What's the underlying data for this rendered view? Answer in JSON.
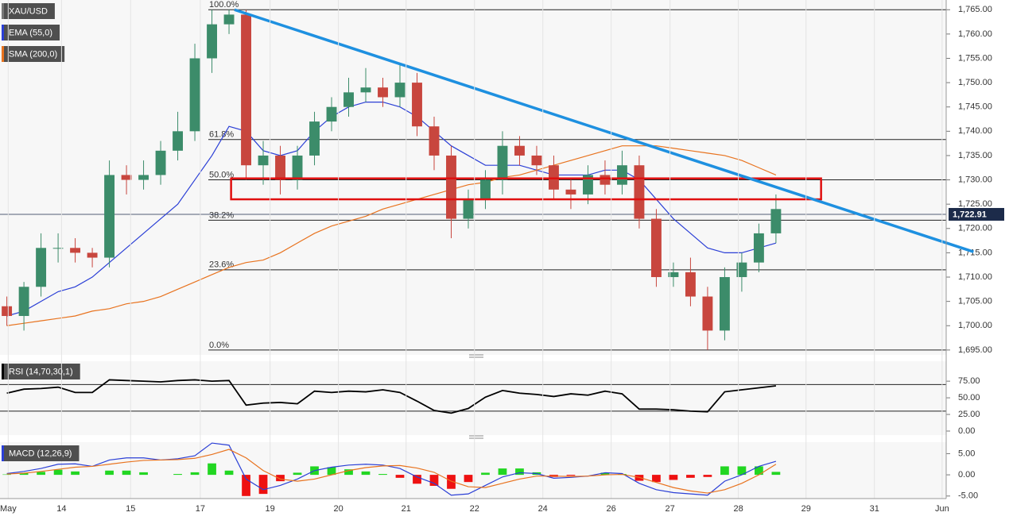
{
  "chart_data": [
    {
      "type": "candlestick",
      "name": "XAU/USD",
      "color_up": "#3c8c6a",
      "color_down": "#c8463e",
      "x": [
        0.1,
        0.35,
        0.6,
        0.85,
        1.1,
        1.35,
        1.6,
        1.85,
        2.1,
        2.35,
        2.6,
        2.85,
        3.1,
        3.35,
        3.6,
        3.85,
        4.1,
        4.35,
        4.6,
        4.85,
        5.1,
        5.35,
        5.6,
        5.85,
        6.1,
        6.35,
        6.6,
        6.85,
        7.1,
        7.35,
        7.6,
        7.85,
        8.1,
        8.35,
        8.6,
        8.85,
        9.1,
        9.35,
        9.6,
        9.85,
        10.1,
        10.35,
        10.6,
        10.85,
        11.1,
        11.35
      ],
      "open": [
        1704,
        1702,
        1708,
        1716,
        1716,
        1715,
        1714,
        1731,
        1730,
        1731,
        1736,
        1740,
        1755,
        1762,
        1764,
        1733,
        1735,
        1730,
        1735,
        1742,
        1745,
        1748,
        1749,
        1747,
        1750,
        1741,
        1735,
        1722,
        1726,
        1730,
        1737,
        1735,
        1733,
        1728,
        1727,
        1731,
        1729,
        1733,
        1722,
        1710,
        1711,
        1706,
        1699,
        1710,
        1713,
        1719
      ],
      "high": [
        1706,
        1709,
        1719,
        1719,
        1718,
        1716,
        1734,
        1733,
        1734,
        1738,
        1744,
        1758,
        1765,
        1765,
        1765,
        1738,
        1737,
        1737,
        1744,
        1747,
        1751,
        1753,
        1751,
        1754,
        1752,
        1743,
        1737,
        1728,
        1732,
        1740,
        1739,
        1737,
        1735,
        1730,
        1733,
        1734,
        1736,
        1735,
        1724,
        1713,
        1714,
        1708,
        1712,
        1715,
        1721,
        1727
      ],
      "low": [
        1700,
        1699,
        1706,
        1713,
        1713,
        1712,
        1712,
        1727,
        1728,
        1729,
        1734,
        1738,
        1752,
        1760,
        1730,
        1729,
        1727,
        1728,
        1733,
        1740,
        1743,
        1746,
        1745,
        1745,
        1739,
        1732,
        1718,
        1720,
        1724,
        1727,
        1733,
        1731,
        1726,
        1724,
        1725,
        1727,
        1727,
        1720,
        1708,
        1708,
        1704,
        1695,
        1697,
        1707,
        1711,
        1717
      ],
      "close": [
        1702,
        1708,
        1716,
        1716,
        1715,
        1714,
        1731,
        1730,
        1731,
        1736,
        1740,
        1755,
        1762,
        1764,
        1733,
        1735,
        1730,
        1735,
        1742,
        1745,
        1748,
        1749,
        1747,
        1750,
        1741,
        1735,
        1722,
        1726,
        1730,
        1737,
        1735,
        1733,
        1728,
        1727,
        1731,
        1729,
        1733,
        1722,
        1710,
        1711,
        1706,
        1699,
        1710,
        1713,
        1719,
        1724
      ],
      "series": [
        {
          "name": "EMA (55,0)",
          "color": "#2b3fd6",
          "values": [
            1702,
            1703,
            1705,
            1707,
            1708,
            1710,
            1713,
            1716,
            1719,
            1722,
            1725,
            1730,
            1735,
            1741,
            1740,
            1736,
            1735,
            1736,
            1740,
            1743,
            1745,
            1746,
            1746,
            1745,
            1743,
            1740,
            1737,
            1735,
            1733,
            1733,
            1733,
            1732,
            1731,
            1731,
            1731,
            1732,
            1732,
            1730,
            1726,
            1722,
            1719,
            1716,
            1715,
            1715,
            1716,
            1717
          ]
        },
        {
          "name": "SMA (200,0)",
          "color": "#e8731f",
          "values": [
            1700,
            1700.5,
            1701,
            1701.5,
            1702,
            1703,
            1703.5,
            1704.5,
            1705,
            1706,
            1707.5,
            1709,
            1710.5,
            1712,
            1713,
            1713.5,
            1715,
            1717,
            1719,
            1720.5,
            1721.5,
            1722.5,
            1724,
            1725,
            1726,
            1727,
            1728,
            1729,
            1729.5,
            1730.5,
            1731,
            1732,
            1733,
            1734,
            1735,
            1736,
            1737,
            1737,
            1737,
            1736.5,
            1736,
            1735.5,
            1735,
            1734,
            1732.5,
            1731
          ]
        }
      ],
      "xlim": [
        0,
        13.84
      ],
      "ylim": [
        1694,
        1767
      ],
      "yticks": [
        {
          "value": 1695,
          "label": "1,695.00"
        },
        {
          "value": 1700,
          "label": "1,700.00"
        },
        {
          "value": 1705,
          "label": "1,705.00"
        },
        {
          "value": 1710,
          "label": "1,710.00"
        },
        {
          "value": 1715,
          "label": "1,715.00"
        },
        {
          "value": 1720,
          "label": "1,720.00"
        },
        {
          "value": 1725,
          "label": "1,725.00"
        },
        {
          "value": 1730,
          "label": "1,730.00"
        },
        {
          "value": 1735,
          "label": "1,735.00"
        },
        {
          "value": 1740,
          "label": "1,740.00"
        },
        {
          "value": 1745,
          "label": "1,745.00"
        },
        {
          "value": 1750,
          "label": "1,750.00"
        },
        {
          "value": 1755,
          "label": "1,755.00"
        },
        {
          "value": 1760,
          "label": "1,760.00"
        },
        {
          "value": 1765,
          "label": "1,765.00"
        }
      ],
      "fib_levels": [
        {
          "value": 1765,
          "label": "100.0%"
        },
        {
          "value": 1738.3,
          "label": "61.8%"
        },
        {
          "value": 1730,
          "label": "50.0%"
        },
        {
          "value": 1721.7,
          "label": "38.2%"
        },
        {
          "value": 1711.5,
          "label": "23.6%"
        },
        {
          "value": 1695,
          "label": "0.0%"
        }
      ],
      "trendline": {
        "x": [
          3.43,
          14.24
        ],
        "y": [
          1765,
          1715.2
        ],
        "color": "#1e90e0"
      },
      "zone": {
        "x": [
          3.38,
          12.01
        ],
        "y": [
          1726,
          1730.3
        ],
        "color": "#e01010"
      },
      "last": {
        "value": 1722.91,
        "label": "1,722.91"
      }
    },
    {
      "type": "line",
      "title": "RSI (14,70,30,1)",
      "x": [
        0.1,
        0.35,
        0.6,
        0.85,
        1.1,
        1.35,
        1.6,
        1.85,
        2.1,
        2.35,
        2.6,
        2.85,
        3.1,
        3.35,
        3.6,
        3.85,
        4.1,
        4.35,
        4.6,
        4.85,
        5.1,
        5.35,
        5.6,
        5.85,
        6.1,
        6.35,
        6.6,
        6.85,
        7.1,
        7.35,
        7.6,
        7.85,
        8.1,
        8.35,
        8.6,
        8.85,
        9.1,
        9.35,
        9.6,
        9.85,
        10.1,
        10.35,
        10.6,
        10.85,
        11.1,
        11.35
      ],
      "series": [
        {
          "color": "#000000",
          "values": [
            57,
            63,
            64,
            66,
            58,
            58,
            77,
            76,
            75,
            74,
            76,
            77,
            75,
            76,
            39,
            42,
            43,
            41,
            60,
            58,
            60,
            59,
            62,
            58,
            45,
            31,
            27,
            34,
            51,
            61,
            57,
            55,
            52,
            56,
            54,
            60,
            56,
            33,
            33,
            32,
            30,
            29,
            59,
            62,
            65,
            68
          ]
        }
      ],
      "levels": [
        70,
        30
      ],
      "xlim": [
        0,
        13.84
      ],
      "ylim": [
        -6,
        105
      ],
      "yticks": [
        {
          "value": 0,
          "label": "0.00"
        },
        {
          "value": 25,
          "label": "25.00"
        },
        {
          "value": 50,
          "label": "50.00"
        },
        {
          "value": 75,
          "label": "75.00"
        }
      ]
    },
    {
      "type": "macd",
      "title": "MACD (12,26,9)",
      "x": [
        0.1,
        0.35,
        0.6,
        0.85,
        1.1,
        1.35,
        1.6,
        1.85,
        2.1,
        2.35,
        2.6,
        2.85,
        3.1,
        3.35,
        3.6,
        3.85,
        4.1,
        4.35,
        4.6,
        4.85,
        5.1,
        5.35,
        5.6,
        5.85,
        6.1,
        6.35,
        6.6,
        6.85,
        7.1,
        7.35,
        7.6,
        7.85,
        8.1,
        8.35,
        8.6,
        8.85,
        9.1,
        9.35,
        9.6,
        9.85,
        10.1,
        10.35,
        10.6,
        10.85,
        11.1,
        11.35
      ],
      "series": [
        {
          "color": "#2b3fd6",
          "values": [
            0.3,
            0.8,
            1.5,
            2.5,
            2.6,
            2.0,
            3.5,
            4.0,
            4.0,
            3.5,
            3.8,
            4.5,
            7.5,
            7.0,
            -1.0,
            -3.5,
            -2.5,
            -1.0,
            1.0,
            1.8,
            2.3,
            2.5,
            2.3,
            1.5,
            -0.5,
            -2.0,
            -4.8,
            -4.5,
            -2.5,
            -0.5,
            0.5,
            0.3,
            -0.8,
            -0.6,
            -0.3,
            0.5,
            0.3,
            -2.0,
            -3.5,
            -4.2,
            -4.5,
            -4.8,
            -1.5,
            0.0,
            2.0,
            3.2
          ]
        },
        {
          "color": "#e8731f",
          "values": [
            0.2,
            0.4,
            0.8,
            1.3,
            1.8,
            2.0,
            2.5,
            3.0,
            3.4,
            3.5,
            3.6,
            3.9,
            4.8,
            6.0,
            4.0,
            1.0,
            -1.0,
            -1.5,
            -1.0,
            0.0,
            1.0,
            1.7,
            2.1,
            2.2,
            1.6,
            0.6,
            -1.5,
            -2.8,
            -3.0,
            -2.0,
            -1.0,
            -0.3,
            -0.3,
            -0.4,
            -0.3,
            0.0,
            0.1,
            -0.6,
            -1.8,
            -3.0,
            -3.8,
            -4.3,
            -3.5,
            -2.0,
            0.0,
            2.5
          ]
        }
      ],
      "histogram": {
        "color_up": "#22d622",
        "color_down": "#ee1111",
        "values": [
          0.1,
          0.4,
          0.7,
          1.2,
          0.8,
          0.0,
          1.0,
          1.0,
          0.6,
          0.0,
          0.2,
          0.6,
          2.7,
          1.0,
          -5.0,
          -4.5,
          -1.5,
          0.5,
          2.0,
          1.8,
          1.3,
          0.8,
          0.2,
          -0.7,
          -2.1,
          -2.6,
          -3.3,
          -1.7,
          0.5,
          1.5,
          1.5,
          0.6,
          -0.5,
          -0.2,
          0.0,
          0.5,
          0.2,
          -1.4,
          -1.7,
          -1.2,
          -0.7,
          -0.5,
          2.0,
          2.0,
          2.0,
          0.7
        ]
      },
      "xlim": [
        0,
        13.84
      ],
      "ylim": [
        -5.6,
        7.7
      ],
      "yticks": [
        {
          "value": -5,
          "label": "-5.00"
        },
        {
          "value": 0,
          "label": "0.00"
        },
        {
          "value": 5,
          "label": "5.00"
        }
      ],
      "xticks": [
        {
          "value": 0.12,
          "label": "May"
        },
        {
          "value": 0.9,
          "label": "14"
        },
        {
          "value": 1.91,
          "label": "15"
        },
        {
          "value": 2.93,
          "label": "17"
        },
        {
          "value": 3.95,
          "label": "19"
        },
        {
          "value": 4.95,
          "label": "20"
        },
        {
          "value": 5.94,
          "label": "21"
        },
        {
          "value": 6.94,
          "label": "22"
        },
        {
          "value": 7.94,
          "label": "24"
        },
        {
          "value": 8.94,
          "label": "26"
        },
        {
          "value": 9.8,
          "label": "27"
        },
        {
          "value": 10.8,
          "label": "28"
        },
        {
          "value": 11.79,
          "label": "29"
        },
        {
          "value": 12.79,
          "label": "31"
        },
        {
          "value": 13.78,
          "label": "Jun"
        }
      ]
    }
  ]
}
